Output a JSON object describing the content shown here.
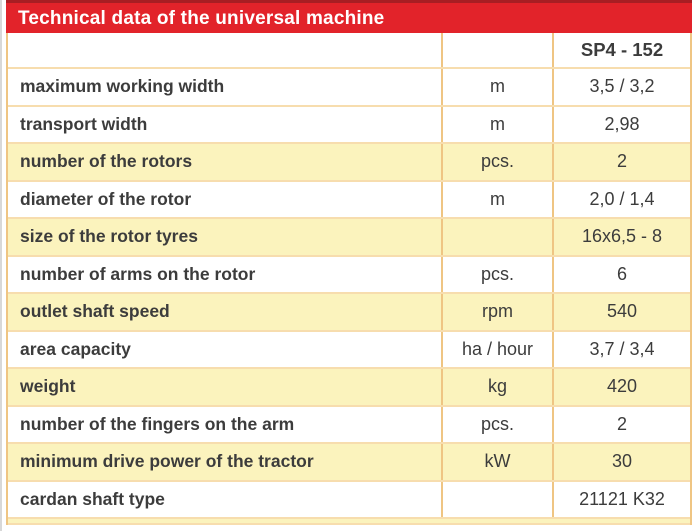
{
  "title": "Technical data of the universal machine",
  "table": {
    "model_header": "SP4 - 152",
    "rows": [
      {
        "label": "maximum working width",
        "unit": "m",
        "value": "3,5 / 3,2",
        "highlight": false
      },
      {
        "label": "transport width",
        "unit": "m",
        "value": "2,98",
        "highlight": false
      },
      {
        "label": "number of the rotors",
        "unit": "pcs.",
        "value": "2",
        "highlight": true
      },
      {
        "label": "diameter of the rotor",
        "unit": "m",
        "value": "2,0 / 1,4",
        "highlight": false
      },
      {
        "label": "size of the rotor tyres",
        "unit": "",
        "value": "16x6,5 - 8",
        "highlight": true
      },
      {
        "label": "number of arms on the rotor",
        "unit": "pcs.",
        "value": "6",
        "highlight": false
      },
      {
        "label": "outlet shaft speed",
        "unit": "rpm",
        "value": "540",
        "highlight": true
      },
      {
        "label": "area capacity",
        "unit": "ha / hour",
        "value": "3,7 / 3,4",
        "highlight": false
      },
      {
        "label": "weight",
        "unit": "kg",
        "value": "420",
        "highlight": true
      },
      {
        "label": "number of the fingers on the arm",
        "unit": "pcs.",
        "value": "2",
        "highlight": false
      },
      {
        "label": "minimum drive power of the tractor",
        "unit": "kW",
        "value": "30",
        "highlight": true
      },
      {
        "label": "cardan shaft type",
        "unit": "",
        "value": "21121 K32",
        "highlight": false
      }
    ]
  },
  "colors": {
    "header_red": "#e2232a",
    "header_red_dark": "#a81e23",
    "row_yellow": "#fbf3bd",
    "border_v": "#efc583",
    "border_h": "#f7ddae",
    "text": "#3c3c3c",
    "title_text": "#ffffff"
  }
}
